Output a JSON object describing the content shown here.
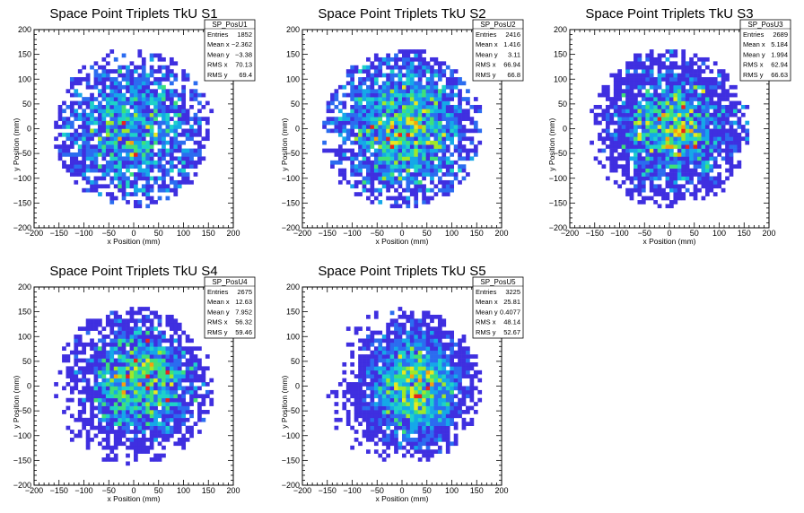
{
  "chart_data": [
    {
      "type": "heatmap",
      "title": "Space Point Triplets TkU S1",
      "xlabel": "x Position (mm)",
      "ylabel": "y Position (mm)",
      "xlim": [
        -200,
        200
      ],
      "ylim": [
        -200,
        200
      ],
      "x_ticks": [
        "−200",
        "−150",
        "−100",
        "−50",
        "0",
        "50",
        "100",
        "150",
        "200"
      ],
      "y_ticks": [
        "−200",
        "−150",
        "−100",
        "−50",
        "0",
        "50",
        "100",
        "150",
        "200"
      ],
      "stats": {
        "name": "SP_PosU1",
        "rows": [
          {
            "label": "Entries",
            "value": "1852"
          },
          {
            "label": "Mean x",
            "value": "−2.362"
          },
          {
            "label": "Mean y",
            "value": "−3.38"
          },
          {
            "label": "RMS x",
            "value": "70.13"
          },
          {
            "label": "RMS y",
            "value": "69.4"
          }
        ]
      },
      "entries": 1852,
      "mean_x": -2.362,
      "mean_y": -3.38,
      "rms_x": 70.13,
      "rms_y": 69.4,
      "radius": 160
    },
    {
      "type": "heatmap",
      "title": "Space Point Triplets TkU S2",
      "xlabel": "x Position (mm)",
      "ylabel": "y Position (mm)",
      "xlim": [
        -200,
        200
      ],
      "ylim": [
        -200,
        200
      ],
      "x_ticks": [
        "−200",
        "−150",
        "−100",
        "−50",
        "0",
        "50",
        "100",
        "150",
        "200"
      ],
      "y_ticks": [
        "−200",
        "−150",
        "−100",
        "−50",
        "0",
        "50",
        "100",
        "150",
        "200"
      ],
      "stats": {
        "name": "SP_PosU2",
        "rows": [
          {
            "label": "Entries",
            "value": "2416"
          },
          {
            "label": "Mean x",
            "value": "1.416"
          },
          {
            "label": "Mean y",
            "value": "3.11"
          },
          {
            "label": "RMS x",
            "value": "66.94"
          },
          {
            "label": "RMS y",
            "value": "66.8"
          }
        ]
      },
      "entries": 2416,
      "mean_x": 1.416,
      "mean_y": 3.11,
      "rms_x": 66.94,
      "rms_y": 66.8,
      "radius": 160
    },
    {
      "type": "heatmap",
      "title": "Space Point Triplets TkU S3",
      "xlabel": "x Position (mm)",
      "ylabel": "y Position (mm)",
      "xlim": [
        -200,
        200
      ],
      "ylim": [
        -200,
        200
      ],
      "x_ticks": [
        "−200",
        "−150",
        "−100",
        "−50",
        "0",
        "50",
        "100",
        "150",
        "200"
      ],
      "y_ticks": [
        "−200",
        "−150",
        "−100",
        "−50",
        "0",
        "50",
        "100",
        "150",
        "200"
      ],
      "stats": {
        "name": "SP_PosU3",
        "rows": [
          {
            "label": "Entries",
            "value": "2689"
          },
          {
            "label": "Mean x",
            "value": "5.184"
          },
          {
            "label": "Mean y",
            "value": "1.994"
          },
          {
            "label": "RMS x",
            "value": "62.94"
          },
          {
            "label": "RMS y",
            "value": "66.63"
          }
        ]
      },
      "entries": 2689,
      "mean_x": 5.184,
      "mean_y": 1.994,
      "rms_x": 62.94,
      "rms_y": 66.63,
      "radius": 160
    },
    {
      "type": "heatmap",
      "title": "Space Point Triplets TkU S4",
      "xlabel": "x Position (mm)",
      "ylabel": "y Position (mm)",
      "xlim": [
        -200,
        200
      ],
      "ylim": [
        -200,
        200
      ],
      "x_ticks": [
        "−200",
        "−150",
        "−100",
        "−50",
        "0",
        "50",
        "100",
        "150",
        "200"
      ],
      "y_ticks": [
        "−200",
        "−150",
        "−100",
        "−50",
        "0",
        "50",
        "100",
        "150",
        "200"
      ],
      "stats": {
        "name": "SP_PosU4",
        "rows": [
          {
            "label": "Entries",
            "value": "2675"
          },
          {
            "label": "Mean x",
            "value": "12.63"
          },
          {
            "label": "Mean y",
            "value": "7.952"
          },
          {
            "label": "RMS x",
            "value": "56.32"
          },
          {
            "label": "RMS y",
            "value": "59.46"
          }
        ]
      },
      "entries": 2675,
      "mean_x": 12.63,
      "mean_y": 7.952,
      "rms_x": 56.32,
      "rms_y": 59.46,
      "radius": 160
    },
    {
      "type": "heatmap",
      "title": "Space Point Triplets TkU S5",
      "xlabel": "x Position (mm)",
      "ylabel": "y Position (mm)",
      "xlim": [
        -200,
        200
      ],
      "ylim": [
        -200,
        200
      ],
      "x_ticks": [
        "−200",
        "−150",
        "−100",
        "−50",
        "0",
        "50",
        "100",
        "150",
        "200"
      ],
      "y_ticks": [
        "−200",
        "−150",
        "−100",
        "−50",
        "0",
        "50",
        "100",
        "150",
        "200"
      ],
      "stats": {
        "name": "SP_PosU5",
        "rows": [
          {
            "label": "Entries",
            "value": "3225"
          },
          {
            "label": "Mean x",
            "value": "25.81"
          },
          {
            "label": "Mean y",
            "value": "0.4077"
          },
          {
            "label": "RMS x",
            "value": "48.14"
          },
          {
            "label": "RMS y",
            "value": "52.67"
          }
        ]
      },
      "entries": 3225,
      "mean_x": 25.81,
      "mean_y": 0.4077,
      "rms_x": 48.14,
      "rms_y": 52.67,
      "radius": 160
    }
  ],
  "colors": {
    "palette": [
      "#3f2fe0",
      "#2b6cf0",
      "#15a8e8",
      "#1ed2c8",
      "#3ee07a",
      "#9fe82a",
      "#e8e81e",
      "#f5a00f",
      "#e8231e"
    ],
    "axis": "#000000",
    "background": "#ffffff"
  }
}
